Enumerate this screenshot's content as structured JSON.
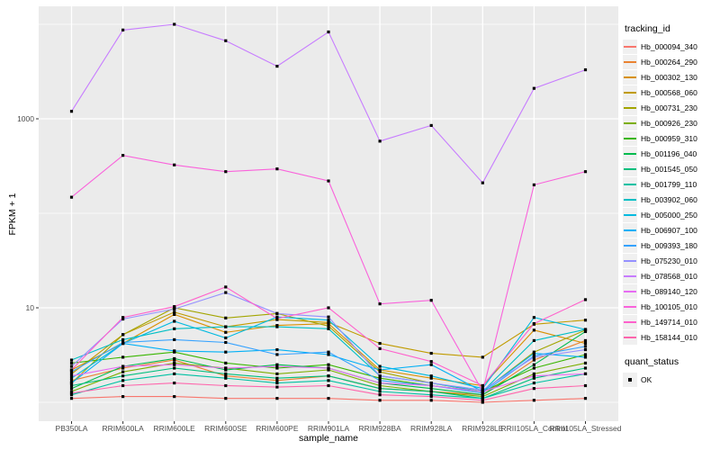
{
  "figure": {
    "panel_bg": "#EBEBEB",
    "grid_color": "#FFFFFF",
    "legend_key_bg": "#F0F0F0",
    "point_color": "#000000",
    "tick_text_color": "#4D4D4D"
  },
  "chart_data": {
    "type": "line",
    "title": "",
    "xlabel": "sample_name",
    "ylabel": "FPKM + 1",
    "y_scale": "log10",
    "ylim": [
      0.7,
      15000
    ],
    "y_ticks_major": [
      10,
      1000
    ],
    "y_ticks_minor": [
      1,
      100,
      10000
    ],
    "y_tick_labels": [
      "10",
      "1000"
    ],
    "grid": "on",
    "legend_position": "right",
    "point_shape": "black-square",
    "x_categories": [
      "PB350LA",
      "RRIM600LA",
      "RRIM600LE",
      "RRIM600SE",
      "RRIM600PE",
      "RRIM901LA",
      "RRIM928BA",
      "RRIM928LA",
      "RRIM928LE",
      "RRII105LA_Control",
      "RRII105LA_Stressed"
    ],
    "series": [
      {
        "name": "Hb_000094_340",
        "color": "#F8766D",
        "values": [
          1.1,
          1.15,
          1.15,
          1.1,
          1.1,
          1.1,
          1.05,
          1.05,
          1.0,
          1.05,
          1.1
        ]
      },
      {
        "name": "Hb_000264_290",
        "color": "#EA8331",
        "values": [
          1.7,
          2.3,
          2.8,
          1.9,
          1.7,
          1.9,
          1.4,
          1.3,
          1.2,
          2.8,
          4.5
        ]
      },
      {
        "name": "Hb_000302_130",
        "color": "#D89000",
        "values": [
          2.2,
          4.2,
          8.5,
          5.5,
          6.5,
          6.8,
          2.2,
          1.8,
          1.5,
          5.8,
          4.2
        ]
      },
      {
        "name": "Hb_000568_060",
        "color": "#C09B00",
        "values": [
          2.0,
          5.2,
          9.0,
          6.3,
          7.5,
          7.0,
          4.2,
          3.3,
          3.0,
          6.7,
          7.4
        ]
      },
      {
        "name": "Hb_000731_230",
        "color": "#A3A500",
        "values": [
          1.6,
          5.2,
          10.0,
          7.8,
          8.7,
          6.4,
          2.1,
          1.6,
          1.3,
          3.4,
          5.8
        ]
      },
      {
        "name": "Hb_000926_230",
        "color": "#7CAE00",
        "values": [
          1.3,
          2.1,
          2.6,
          2.3,
          2.0,
          2.2,
          1.5,
          1.3,
          1.15,
          2.0,
          2.6
        ]
      },
      {
        "name": "Hb_000959_310",
        "color": "#39B600",
        "values": [
          2.6,
          3.0,
          3.4,
          2.6,
          2.3,
          2.5,
          1.8,
          1.5,
          1.3,
          2.3,
          3.2
        ]
      },
      {
        "name": "Hb_001196_040",
        "color": "#00BB4E",
        "values": [
          1.4,
          2.4,
          2.9,
          2.2,
          2.5,
          2.3,
          1.6,
          1.4,
          1.2,
          2.5,
          5.6
        ]
      },
      {
        "name": "Hb_001545_050",
        "color": "#00BF7D",
        "values": [
          1.5,
          1.9,
          2.3,
          2.0,
          1.8,
          1.9,
          1.4,
          1.3,
          1.1,
          1.8,
          2.3
        ]
      },
      {
        "name": "Hb_001799_110",
        "color": "#00C1A3",
        "values": [
          1.2,
          1.7,
          2.0,
          1.8,
          1.6,
          1.7,
          1.3,
          1.2,
          1.1,
          1.6,
          2.0
        ]
      },
      {
        "name": "Hb_003902_060",
        "color": "#00BFC4",
        "values": [
          2.8,
          4.6,
          6.0,
          6.3,
          6.3,
          6.0,
          1.9,
          1.6,
          1.3,
          4.5,
          5.9
        ]
      },
      {
        "name": "Hb_005000_250",
        "color": "#00BAE0",
        "values": [
          1.8,
          4.2,
          7.2,
          4.8,
          8.0,
          7.4,
          2.4,
          1.9,
          1.4,
          7.9,
          5.9
        ]
      },
      {
        "name": "Hb_006907_100",
        "color": "#00B0F6",
        "values": [
          1.6,
          4.2,
          3.5,
          3.4,
          3.6,
          3.2,
          2.2,
          2.5,
          1.3,
          3.3,
          3.0
        ]
      },
      {
        "name": "Hb_009393_180",
        "color": "#35A2FF",
        "values": [
          2.1,
          4.3,
          4.6,
          4.3,
          3.2,
          3.4,
          1.7,
          1.5,
          1.25,
          3.1,
          3.9
        ]
      },
      {
        "name": "Hb_075230_010",
        "color": "#9590FF",
        "values": [
          2.4,
          7.6,
          9.7,
          14.5,
          8.7,
          8.0,
          1.9,
          1.6,
          1.35,
          3.0,
          3.6
        ]
      },
      {
        "name": "Hb_078568_010",
        "color": "#C77CFF",
        "values": [
          1200,
          8700,
          10000,
          6700,
          3600,
          8300,
          580,
          850,
          210,
          2100,
          3300
        ]
      },
      {
        "name": "Hb_089140_120",
        "color": "#E76BF3",
        "values": [
          1.9,
          2.4,
          2.5,
          2.3,
          2.4,
          2.3,
          1.6,
          1.5,
          1.3,
          1.9,
          2.0
        ]
      },
      {
        "name": "Hb_100105_010",
        "color": "#FA62DB",
        "values": [
          148,
          410,
          325,
          276,
          295,
          220,
          11,
          12,
          1.3,
          200,
          276
        ]
      },
      {
        "name": "Hb_149714_010",
        "color": "#FF61CC",
        "values": [
          2.2,
          7.9,
          10.3,
          16.6,
          7.7,
          10.0,
          3.7,
          2.7,
          1.5,
          6.8,
          12.2
        ]
      },
      {
        "name": "Hb_158144_010",
        "color": "#FF65AC",
        "values": [
          1.25,
          1.5,
          1.6,
          1.5,
          1.45,
          1.5,
          1.2,
          1.15,
          1.05,
          1.4,
          1.5
        ]
      }
    ]
  },
  "legend": {
    "tracking_title": "tracking_id",
    "quant_title": "quant_status",
    "quant_items": [
      {
        "label": "OK"
      }
    ]
  }
}
